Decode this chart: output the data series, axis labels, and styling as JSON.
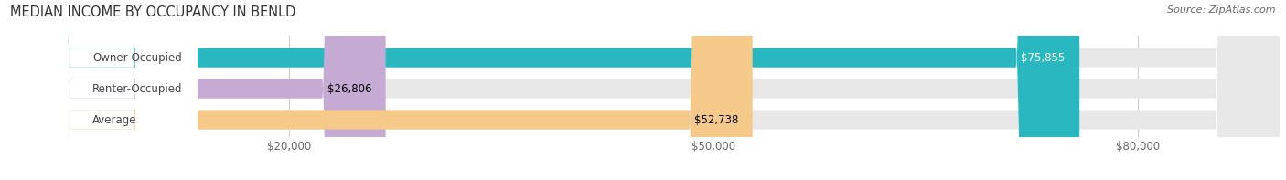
{
  "title": "MEDIAN INCOME BY OCCUPANCY IN BENLD",
  "source": "Source: ZipAtlas.com",
  "categories": [
    "Owner-Occupied",
    "Renter-Occupied",
    "Average"
  ],
  "values": [
    75855,
    26806,
    52738
  ],
  "bar_colors": [
    "#2ab8c0",
    "#c5aad4",
    "#f5c98a"
  ],
  "bar_bg_color": "#e8e8e8",
  "value_labels": [
    "$75,855",
    "$26,806",
    "$52,738"
  ],
  "value_label_colors": [
    "white",
    "black",
    "black"
  ],
  "x_ticks": [
    20000,
    50000,
    80000
  ],
  "x_tick_labels": [
    "$20,000",
    "$50,000",
    "$80,000"
  ],
  "xmax": 90000,
  "xmin": 0,
  "title_fontsize": 10.5,
  "source_fontsize": 8,
  "label_fontsize": 8.5,
  "value_fontsize": 8.5
}
